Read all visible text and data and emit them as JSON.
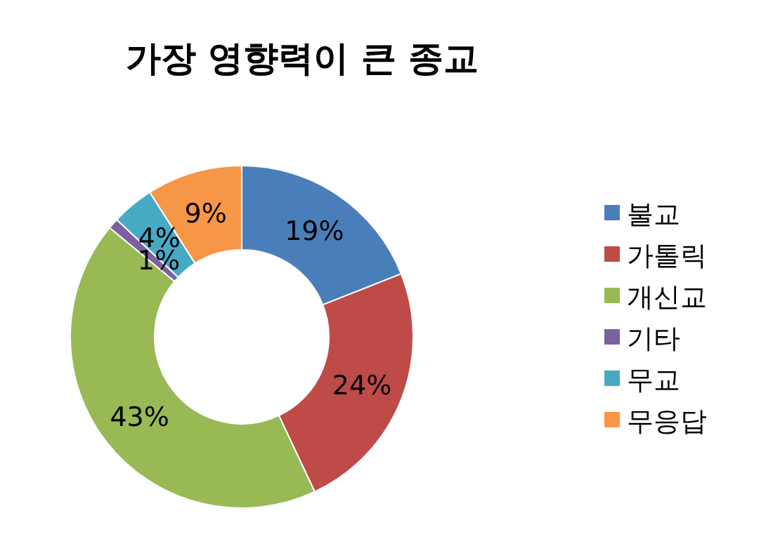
{
  "chart_data": {
    "type": "donut",
    "title": "가장 영향력이 큰 종교",
    "categories": [
      "불교",
      "가톨릭",
      "개신교",
      "기타",
      "무교",
      "무응답"
    ],
    "values": [
      19,
      24,
      43,
      1,
      4,
      9
    ],
    "colors": [
      "#4a7ebb",
      "#be4b48",
      "#98b954",
      "#7d60a0",
      "#46aac5",
      "#f79646"
    ],
    "value_labels": [
      "19%",
      "24%",
      "43%",
      "1%",
      "4%",
      "9%"
    ],
    "legend": "right"
  }
}
